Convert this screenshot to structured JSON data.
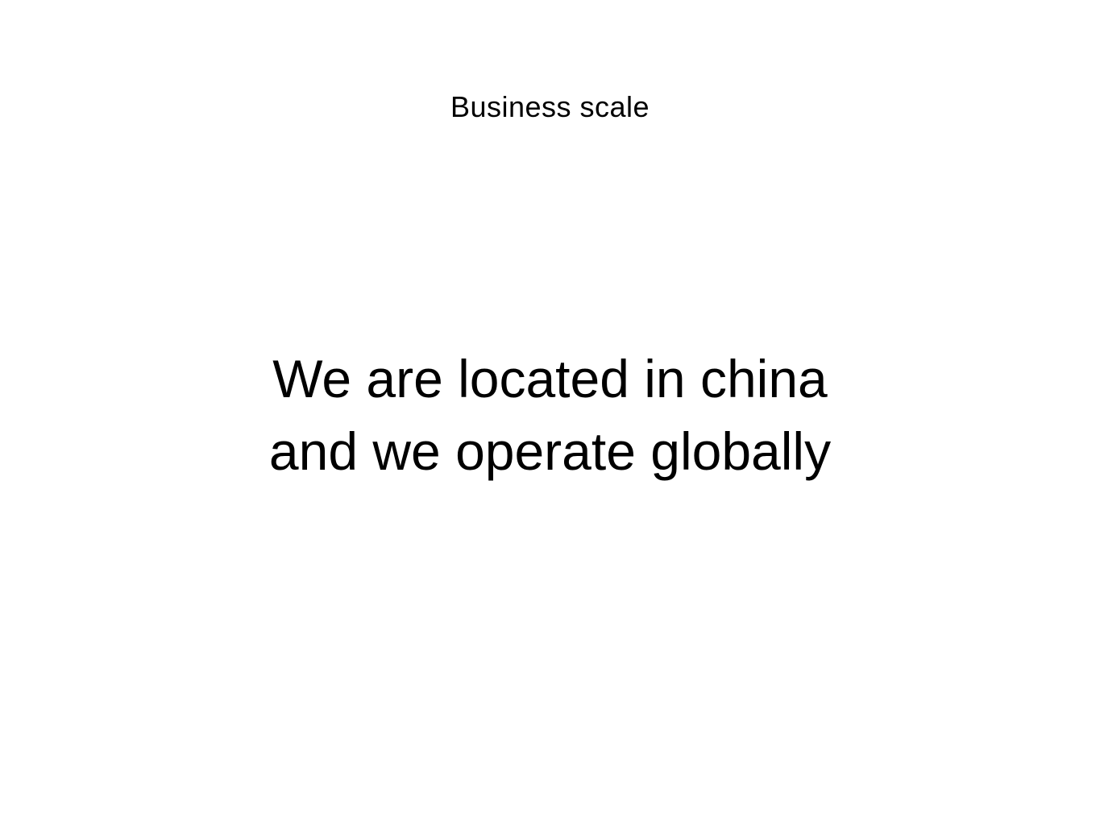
{
  "slide": {
    "title": "Business scale",
    "body_lines": [
      "We are located in china",
      "and we operate globally"
    ]
  },
  "colors": {
    "background": "#ffffff",
    "text": "#000000"
  }
}
